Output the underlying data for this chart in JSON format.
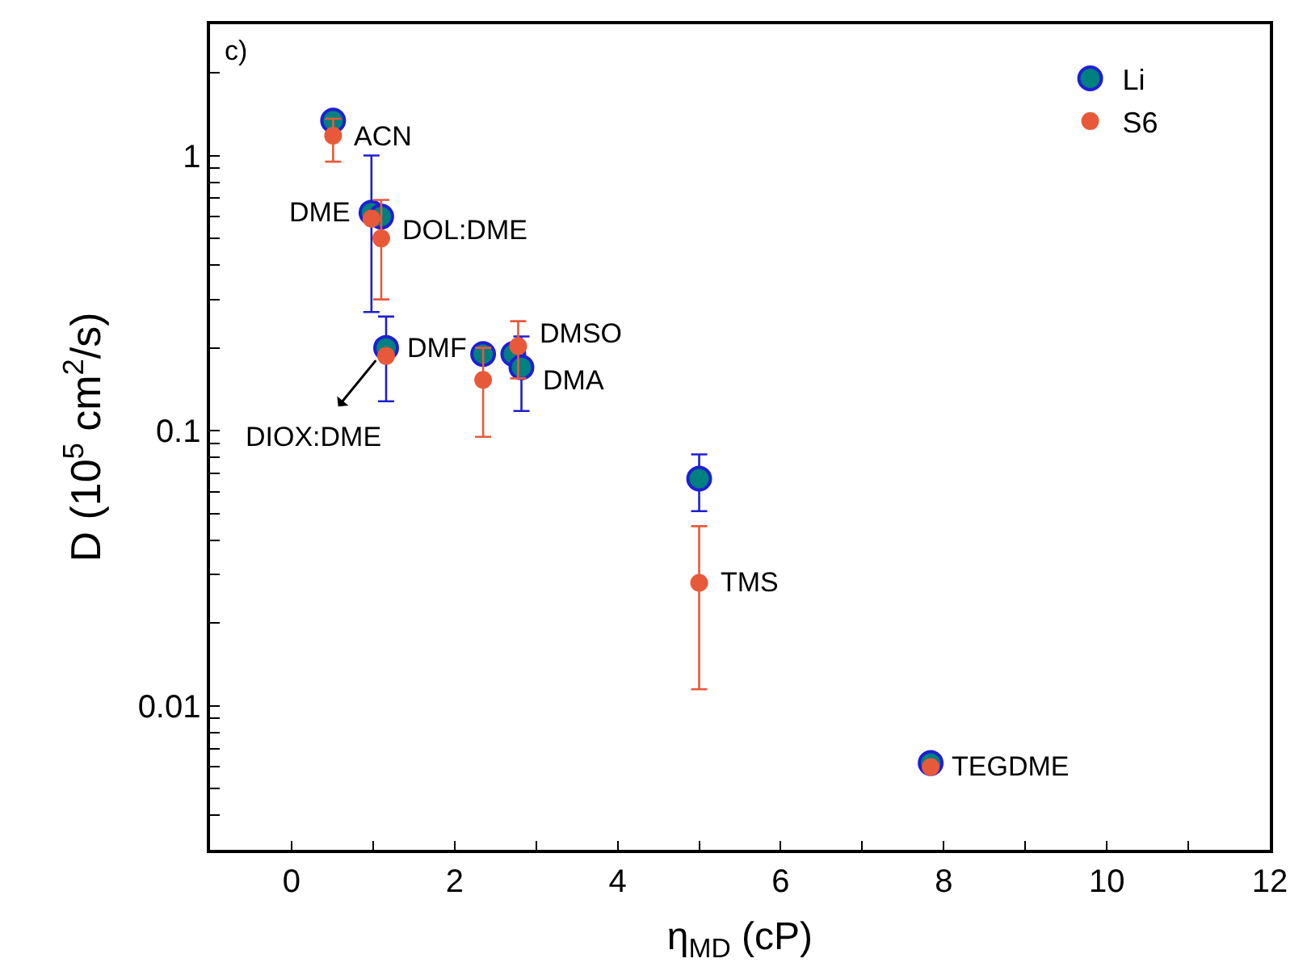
{
  "chart_data": {
    "type": "scatter",
    "xlabel": "η$_{MD}$ (cP)",
    "ylabel": "D (10$^{5}$ cm$^{2}$/s)",
    "log": "y",
    "xlim": [
      -1,
      12
    ],
    "ylim": [
      0.003,
      3
    ],
    "xticks": [
      0,
      {
        "value": 1,
        "label": null
      },
      2,
      {
        "value": 3,
        "label": null
      },
      4,
      {
        "value": 5,
        "label": null
      },
      6,
      {
        "value": 7,
        "label": null
      },
      8,
      {
        "value": 9,
        "label": null
      },
      10,
      {
        "value": 11,
        "label": null
      },
      12
    ],
    "yticks": [
      {
        "value": 0.003,
        "label": null
      },
      {
        "value": 0.004,
        "label": null
      },
      {
        "value": 0.005,
        "label": null
      },
      {
        "value": 0.006,
        "label": null
      },
      {
        "value": 0.007,
        "label": null
      },
      {
        "value": 0.008,
        "label": null
      },
      {
        "value": 0.009,
        "label": null
      },
      0.01,
      {
        "value": 0.02,
        "label": null
      },
      {
        "value": 0.03,
        "label": null
      },
      {
        "value": 0.04,
        "label": null
      },
      {
        "value": 0.05,
        "label": null
      },
      {
        "value": 0.06,
        "label": null
      },
      {
        "value": 0.07,
        "label": null
      },
      {
        "value": 0.08,
        "label": null
      },
      {
        "value": 0.09,
        "label": null
      },
      0.1,
      {
        "value": 0.2,
        "label": null
      },
      {
        "value": 0.3,
        "label": null
      },
      {
        "value": 0.4,
        "label": null
      },
      {
        "value": 0.5,
        "label": null
      },
      {
        "value": 0.6,
        "label": null
      },
      {
        "value": 0.7,
        "label": null
      },
      {
        "value": 0.8,
        "label": null
      },
      {
        "value": 0.9,
        "label": null
      },
      1,
      {
        "value": 2,
        "label": null
      },
      {
        "value": 3,
        "label": null
      }
    ],
    "legend": "top right",
    "marker": "circle",
    "series": [
      {
        "name": "Li",
        "color": "#008080",
        "x": [
          0.51,
          0.98,
          1.1,
          1.16,
          2.35,
          2.72,
          2.82,
          5.0,
          7.84
        ],
        "values": [
          1.34,
          0.62,
          0.6,
          0.2,
          0.19,
          0.19,
          0.17,
          0.067,
          0.0062
        ],
        "errors": [
          null,
          [
            0.27,
            1.0
          ],
          null,
          [
            0.128,
            0.26
          ],
          null,
          null,
          [
            0.118,
            0.22
          ],
          [
            0.051,
            0.082
          ],
          null
        ]
      },
      {
        "name": "S6",
        "color": "#e8593a",
        "x": [
          0.51,
          0.98,
          1.1,
          1.16,
          2.35,
          2.78,
          5.0,
          7.84
        ],
        "values": [
          1.18,
          0.59,
          0.5,
          0.187,
          0.153,
          0.203,
          0.028,
          0.006
        ],
        "errors": [
          [
            0.95,
            1.36
          ],
          null,
          [
            0.3,
            0.69
          ],
          null,
          [
            0.095,
            0.2
          ],
          [
            0.155,
            0.25
          ],
          [
            0.0115,
            0.045
          ],
          null
        ]
      }
    ],
    "annotations": [
      "c)",
      {
        "text": "ACN",
        "x": 0.51,
        "y": 1.18
      },
      {
        "text": "DME",
        "x": 0.98,
        "y": 0.62
      },
      {
        "text": "DOL:DME",
        "x": 1.1,
        "y": 0.6
      },
      {
        "text": "DMF",
        "x": 1.16,
        "y": 0.2
      },
      {
        "text": "DMSO",
        "x": 2.78,
        "y": 0.203
      },
      {
        "text": "DMA",
        "x": 2.82,
        "y": 0.17
      },
      {
        "text": "TMS",
        "x": 5.0,
        "y": 0.028
      },
      {
        "text": "TEGDME",
        "x": 7.84,
        "y": 0.006
      },
      {
        "text": "DIOX:DME",
        "x": 1.16,
        "y": 0.2
      }
    ]
  }
}
